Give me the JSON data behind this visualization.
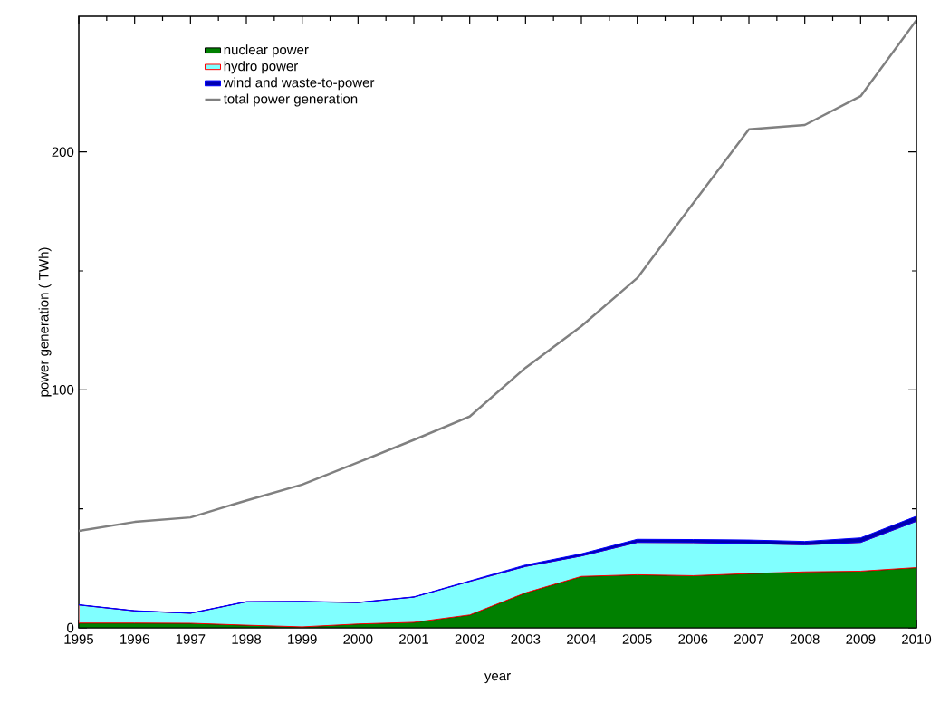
{
  "chart_data": {
    "type": "area",
    "stacked": true,
    "xlabel": "year",
    "ylabel": "power generation ( TWh)",
    "x": [
      1995,
      1996,
      1997,
      1998,
      1999,
      2000,
      2001,
      2002,
      2003,
      2004,
      2005,
      2006,
      2007,
      2008,
      2009,
      2010
    ],
    "series": [
      {
        "name": "nuclear power",
        "color": "#008000",
        "values": [
          2.0,
          2.0,
          1.9,
          1.1,
          0.4,
          1.6,
          2.3,
          5.4,
          14.7,
          21.6,
          22.3,
          21.9,
          22.8,
          23.5,
          23.8,
          25.3
        ]
      },
      {
        "name": "hydro power",
        "color": "#80ffff",
        "values": [
          7.6,
          5.1,
          4.2,
          9.8,
          10.6,
          9.0,
          10.6,
          14.1,
          11.1,
          8.6,
          13.6,
          13.9,
          12.6,
          11.4,
          12.1,
          19.5
        ]
      },
      {
        "name": "wind and waste-to-power",
        "color": "#0000b0",
        "values": [
          0.1,
          0.1,
          0.1,
          0.1,
          0.1,
          0.1,
          0.1,
          0.2,
          0.6,
          0.9,
          1.3,
          1.3,
          1.5,
          1.4,
          1.9,
          2.1
        ]
      },
      {
        "name": "total power generation",
        "type": "line",
        "color": "#808080",
        "values": [
          40.7,
          44.5,
          46.4,
          53.5,
          60.2,
          69.5,
          79.0,
          88.8,
          109.3,
          126.8,
          147.0,
          178.4,
          209.5,
          211.3,
          223.4,
          255.4
        ]
      }
    ],
    "xlim": [
      1995,
      2010
    ],
    "xticks": [
      1995,
      1996,
      1997,
      1998,
      1999,
      2000,
      2001,
      2002,
      2003,
      2004,
      2005,
      2006,
      2007,
      2008,
      2009,
      2010
    ],
    "ylim": [
      0,
      257
    ],
    "yticks": [
      0,
      100,
      200
    ],
    "legend": "top left",
    "grid": false
  }
}
